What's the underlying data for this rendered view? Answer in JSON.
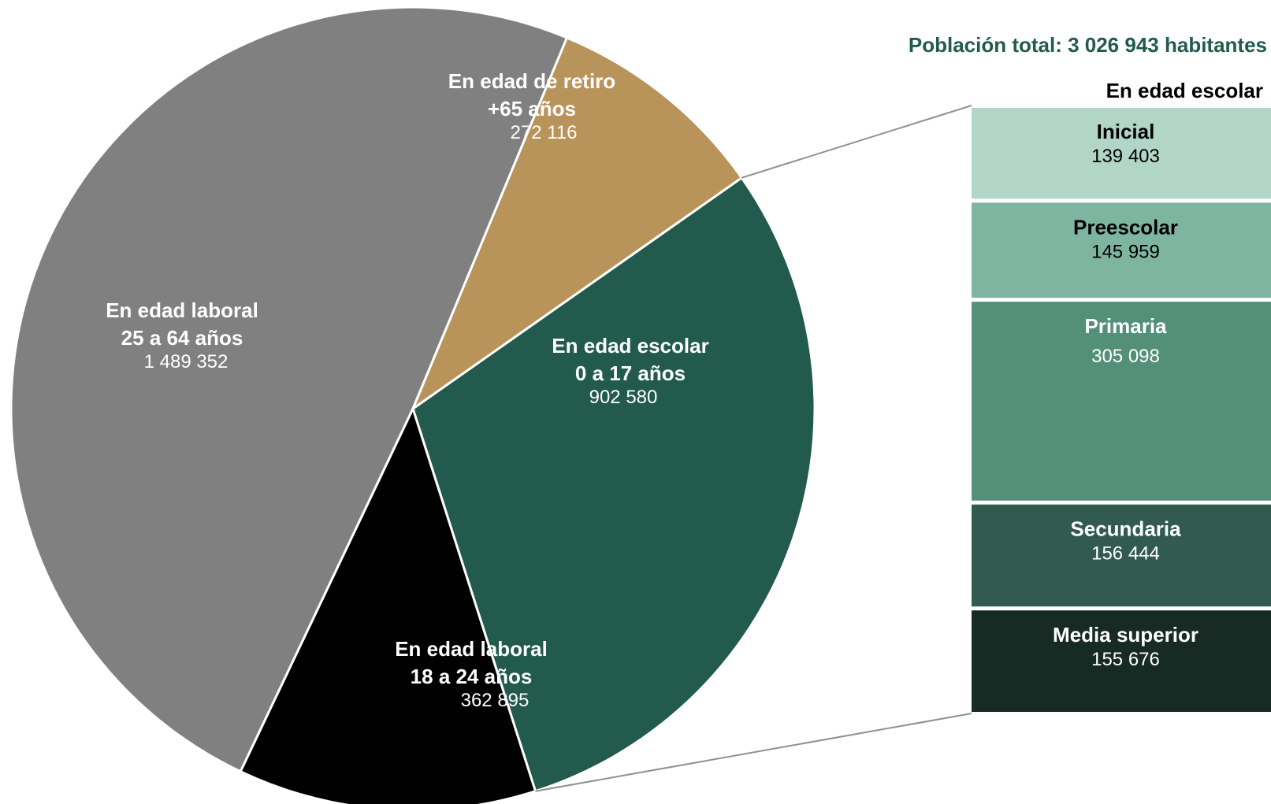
{
  "chart_data": {
    "type": "pie",
    "title": "Población total: 3 026 943 habitantes",
    "slices": [
      {
        "key": "escolar",
        "label_lines": [
          "En edad escolar",
          "0 a 17 años"
        ],
        "value_text": "902 580",
        "value": 902580,
        "color": "#225a4e"
      },
      {
        "key": "laboral18",
        "label_lines": [
          "En edad laboral",
          "18 a 24 años"
        ],
        "value_text": "362 895",
        "value": 362895,
        "color": "#000000"
      },
      {
        "key": "laboral25",
        "label_lines": [
          "En edad laboral",
          "25 a 64 años"
        ],
        "value_text": "1 489 352",
        "value": 1489352,
        "color": "#808080"
      },
      {
        "key": "retiro",
        "label_lines": [
          "En edad de retiro",
          "+65 años"
        ],
        "value_text": "272 116",
        "value": 272116,
        "color": "#b8935a"
      }
    ],
    "breakdown": {
      "title": "En edad escolar",
      "parent": "escolar",
      "segments": [
        {
          "label": "Inicial",
          "value_text": "139 403",
          "value": 139403,
          "color": "#b1d5c7",
          "text_color": "#000000"
        },
        {
          "label": "Preescolar",
          "value_text": "145 959",
          "value": 145959,
          "color": "#7db5a0",
          "text_color": "#000000"
        },
        {
          "label": "Primaria",
          "value_text": "305 098",
          "value": 305098,
          "color": "#538f79",
          "text_color": "#ffffff"
        },
        {
          "label": "Secundaria",
          "value_text": "156 444",
          "value": 156444,
          "color": "#335a4f",
          "text_color": "#ffffff"
        },
        {
          "label": "Media superior",
          "value_text": "155 676",
          "value": 155676,
          "color": "#182a24",
          "text_color": "#ffffff"
        }
      ]
    },
    "colors": {
      "title": "#225a4e",
      "connector": "#909090"
    }
  }
}
